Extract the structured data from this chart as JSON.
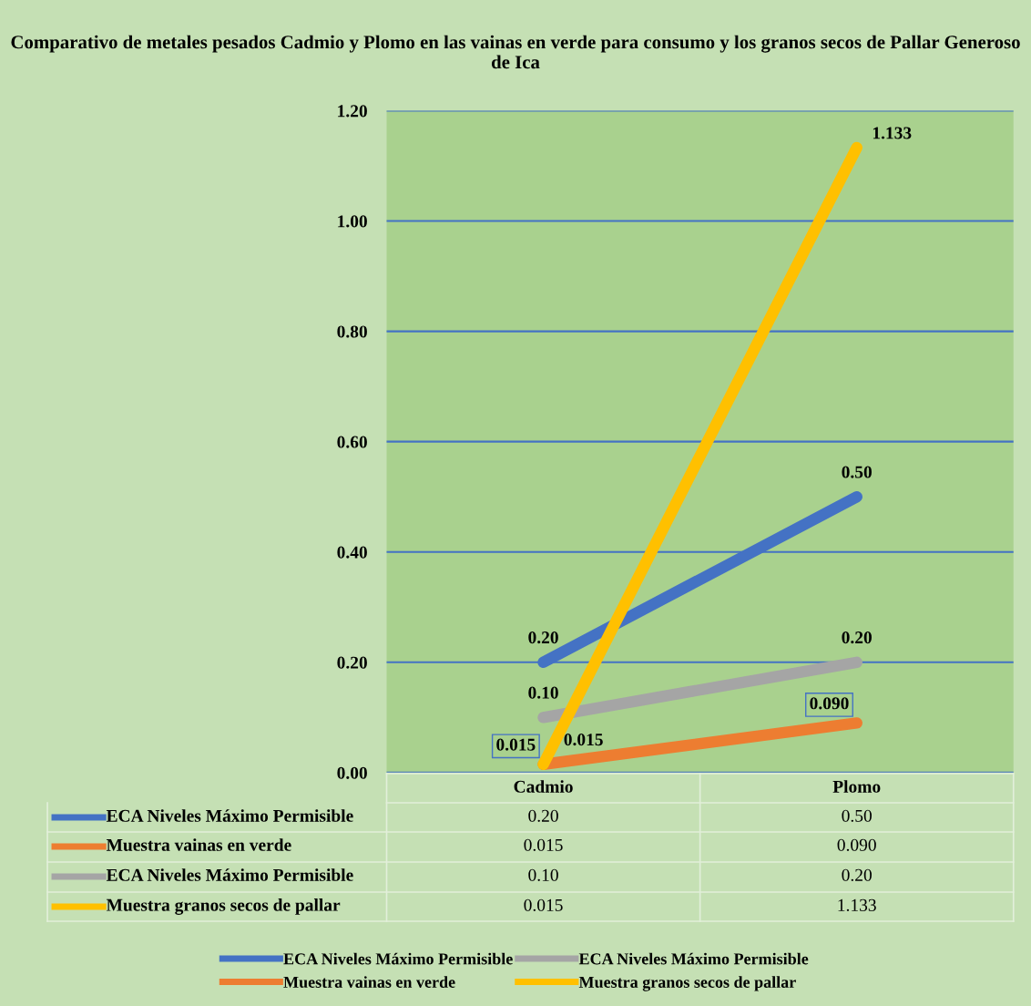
{
  "chart_data": {
    "type": "line",
    "title": "Comparativo de metales pesados Cadmio y Plomo en las vainas en verde para consumo y los granos secos de Pallar Generoso de Ica",
    "categories": [
      "Cadmio",
      "Plomo"
    ],
    "series": [
      {
        "name": "ECA Niveles Máximo Permisible",
        "color": "#4472c4",
        "values": [
          0.2,
          0.5
        ],
        "value_labels": [
          "0.20",
          "0.50"
        ]
      },
      {
        "name": "Muestra vainas en verde",
        "color": "#ed7d31",
        "values": [
          0.015,
          0.09
        ],
        "value_labels": [
          "0.015",
          "0.090"
        ]
      },
      {
        "name": "ECA Niveles Máximo Permisible",
        "color": "#a5a5a5",
        "values": [
          0.1,
          0.2
        ],
        "value_labels": [
          "0.10",
          "0.20"
        ]
      },
      {
        "name": "Muestra granos secos de pallar",
        "color": "#ffc000",
        "values": [
          0.015,
          1.133
        ],
        "value_labels": [
          "0.015",
          "1.133"
        ]
      }
    ],
    "ylim": [
      0,
      1.2
    ],
    "yticks": [
      {
        "value": 0,
        "label": "0.00"
      },
      {
        "value": 0.2,
        "label": "0.20"
      },
      {
        "value": 0.4,
        "label": "0.40"
      },
      {
        "value": 0.6,
        "label": "0.60"
      },
      {
        "value": 0.8,
        "label": "0.80"
      },
      {
        "value": 1.0,
        "label": "1.00"
      },
      {
        "value": 1.2,
        "label": "1.20"
      }
    ],
    "grid": "y",
    "legend": "bottom",
    "line_style": "solid"
  }
}
